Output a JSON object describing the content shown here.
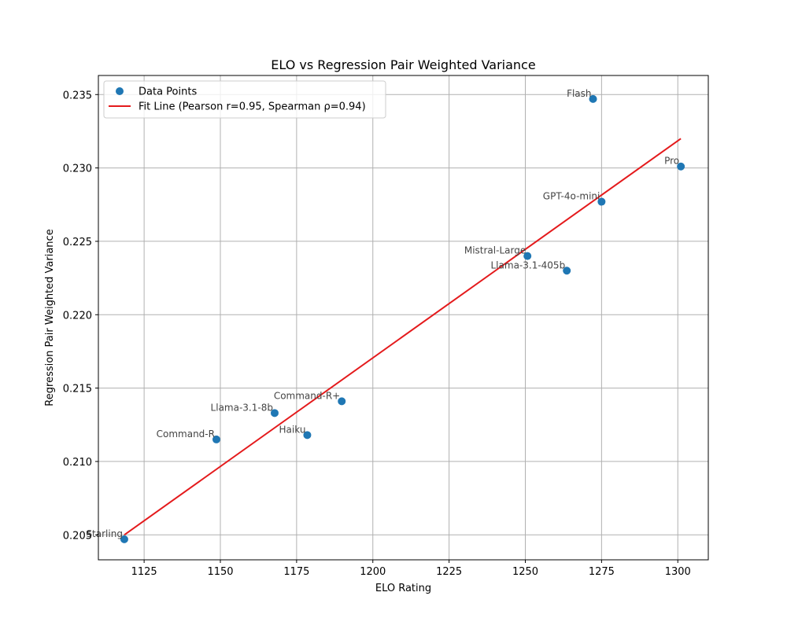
{
  "chart_data": {
    "type": "scatter",
    "title": "ELO vs Regression Pair Weighted Variance",
    "xlabel": "ELO Rating",
    "ylabel": "Regression Pair Weighted Variance",
    "xlim": [
      1110,
      1310
    ],
    "ylim": [
      0.2033,
      0.2363
    ],
    "xticks": [
      1125,
      1150,
      1175,
      1200,
      1225,
      1250,
      1275,
      1300
    ],
    "yticks": [
      0.205,
      0.21,
      0.215,
      0.22,
      0.225,
      0.23,
      0.235
    ],
    "xtick_labels": [
      "1125",
      "1150",
      "1175",
      "1200",
      "1225",
      "1250",
      "1275",
      "1300"
    ],
    "ytick_labels": [
      "0.205",
      "0.210",
      "0.215",
      "0.220",
      "0.225",
      "0.230",
      "0.235"
    ],
    "grid": true,
    "legend_position": "top-left",
    "series": [
      {
        "name": "Data Points",
        "kind": "scatter",
        "color": "#1f77b4",
        "points": [
          {
            "label": "Starling",
            "x": 1118.5,
            "y": 0.2047
          },
          {
            "label": "Command-R",
            "x": 1148.7,
            "y": 0.2115
          },
          {
            "label": "Llama-3.1-8b",
            "x": 1167.8,
            "y": 0.2133
          },
          {
            "label": "Haiku",
            "x": 1178.5,
            "y": 0.2118
          },
          {
            "label": "Command-R+",
            "x": 1189.8,
            "y": 0.2141
          },
          {
            "label": "Mistral-Large",
            "x": 1250.7,
            "y": 0.224
          },
          {
            "label": "Llama-3.1-405b",
            "x": 1263.6,
            "y": 0.223
          },
          {
            "label": "Flash",
            "x": 1272.2,
            "y": 0.2347
          },
          {
            "label": "GPT-4o-mini",
            "x": 1275.0,
            "y": 0.2277
          },
          {
            "label": "Pro",
            "x": 1301.0,
            "y": 0.2301
          }
        ]
      },
      {
        "name": "Fit Line (Pearson r=0.95, Spearman ρ=0.94)",
        "kind": "line",
        "color": "#e41a1c",
        "x": [
          1118.5,
          1301.0
        ],
        "y": [
          0.205,
          0.232
        ]
      }
    ]
  }
}
